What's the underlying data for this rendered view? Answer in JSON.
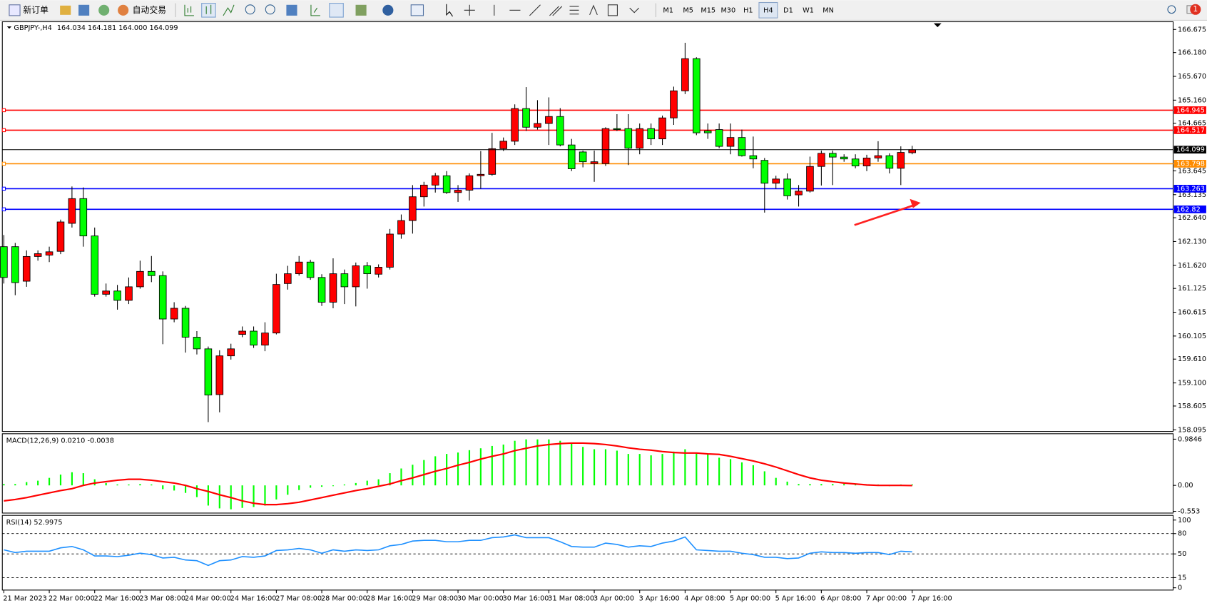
{
  "toolbar": {
    "buttons": [
      "新订单",
      "自动交易"
    ],
    "timeframes": [
      "M1",
      "M5",
      "M15",
      "M30",
      "H1",
      "H4",
      "D1",
      "W1",
      "MN"
    ],
    "active_timeframe": "H4",
    "badge": "1"
  },
  "chart_data": [
    {
      "type": "candlestick",
      "title": "GBPJPY-,H4",
      "ohlc_text": "164.034 164.181 164.000 164.099",
      "categories": [
        "21 Mar 2023",
        null,
        null,
        null,
        "22 Mar 00:00",
        null,
        null,
        null,
        "22 Mar 16:00",
        null,
        null,
        null,
        "23 Mar 08:00",
        null,
        null,
        null,
        "24 Mar 00:00",
        null,
        null,
        null,
        "24 Mar 16:00",
        null,
        null,
        null,
        "27 Mar 08:00",
        null,
        null,
        null,
        "28 Mar 00:00",
        null,
        null,
        null,
        "28 Mar 16:00",
        null,
        null,
        null,
        "29 Mar 08:00",
        null,
        null,
        null,
        "30 Mar 00:00",
        null,
        null,
        null,
        "30 Mar 16:00",
        null,
        null,
        null,
        "31 Mar 08:00",
        null,
        null,
        null,
        "3 Apr 00:00",
        null,
        null,
        null,
        "3 Apr 16:00",
        null,
        null,
        null,
        "4 Apr 08:00",
        null,
        null,
        null,
        "5 Apr 00:00",
        null,
        null,
        null,
        "5 Apr 16:00",
        null,
        null,
        null,
        "6 Apr 08:00",
        null,
        null,
        null,
        "7 Apr 00:00",
        null,
        null,
        null,
        "7 Apr 16:00"
      ],
      "open": [
        162.02,
        162.02,
        161.28,
        161.81,
        161.84,
        161.92,
        162.52,
        163.05,
        162.25,
        161.0,
        161.07,
        160.87,
        161.16,
        161.49,
        161.4,
        160.47,
        160.7,
        160.08,
        159.83,
        158.85,
        159.68,
        160.14,
        160.21,
        159.91,
        160.17,
        161.23,
        161.44,
        161.69,
        161.36,
        160.83,
        161.44,
        161.16,
        161.61,
        161.43,
        161.58,
        162.29,
        162.58,
        163.09,
        163.34,
        163.54,
        163.18,
        163.23,
        163.54,
        163.57,
        164.12,
        164.28,
        164.98,
        164.58,
        164.66,
        164.81,
        164.2,
        164.05,
        163.8,
        163.8,
        164.55,
        164.55,
        164.13,
        164.55,
        164.33,
        164.78,
        165.36,
        166.05,
        164.5,
        164.53,
        164.17,
        164.36,
        163.97,
        163.87,
        163.38,
        163.47,
        163.13,
        163.21,
        163.74,
        164.02,
        163.94,
        163.9,
        163.75,
        163.92,
        163.97,
        163.7,
        164.034
      ],
      "high": [
        162.27,
        162.1,
        161.94,
        161.94,
        162.02,
        162.6,
        163.31,
        163.29,
        162.43,
        161.23,
        161.2,
        161.36,
        161.72,
        161.82,
        161.49,
        160.83,
        160.75,
        160.21,
        159.88,
        159.8,
        159.94,
        160.31,
        160.31,
        160.4,
        161.44,
        161.61,
        161.82,
        161.74,
        161.43,
        161.77,
        161.53,
        161.68,
        161.69,
        161.64,
        162.4,
        162.71,
        163.34,
        163.41,
        163.6,
        163.64,
        163.34,
        163.59,
        164.07,
        164.46,
        164.36,
        165.07,
        165.44,
        165.16,
        165.22,
        164.99,
        164.33,
        164.08,
        164.08,
        164.58,
        164.86,
        164.86,
        164.66,
        164.66,
        164.83,
        165.45,
        166.39,
        166.08,
        164.66,
        164.66,
        164.66,
        164.53,
        164.38,
        163.92,
        163.54,
        163.59,
        163.34,
        163.95,
        164.08,
        164.08,
        164.0,
        164.0,
        163.99,
        164.28,
        164.02,
        164.17,
        164.181
      ],
      "low": [
        161.23,
        160.98,
        161.16,
        161.72,
        161.69,
        161.86,
        162.43,
        162.02,
        160.95,
        160.95,
        160.67,
        160.79,
        161.12,
        161.26,
        159.93,
        160.4,
        159.75,
        159.71,
        158.26,
        158.47,
        159.6,
        160.08,
        159.85,
        159.78,
        160.14,
        161.1,
        161.4,
        161.31,
        160.75,
        160.7,
        160.79,
        160.74,
        161.12,
        161.36,
        161.53,
        162.19,
        162.3,
        162.88,
        163.18,
        163.15,
        162.98,
        163.01,
        163.26,
        163.54,
        164.07,
        164.2,
        164.5,
        164.53,
        164.2,
        164.17,
        163.64,
        163.72,
        163.41,
        163.75,
        164.5,
        163.77,
        164.0,
        164.2,
        164.2,
        164.63,
        165.29,
        164.41,
        164.33,
        164.13,
        164.0,
        163.95,
        163.7,
        162.75,
        163.26,
        163.03,
        162.88,
        163.18,
        163.33,
        163.34,
        163.84,
        163.7,
        163.64,
        163.84,
        163.59,
        163.34,
        164.0
      ],
      "close": [
        161.36,
        161.25,
        161.81,
        161.87,
        161.91,
        162.55,
        163.05,
        162.25,
        161.0,
        161.07,
        160.87,
        161.16,
        161.49,
        161.4,
        160.47,
        160.7,
        160.08,
        159.83,
        158.84,
        159.68,
        159.83,
        160.21,
        159.91,
        160.17,
        161.21,
        161.44,
        161.69,
        161.36,
        160.83,
        161.44,
        161.16,
        161.61,
        161.44,
        161.58,
        162.29,
        162.58,
        163.09,
        163.34,
        163.54,
        163.18,
        163.23,
        163.54,
        163.57,
        164.12,
        164.28,
        164.98,
        164.58,
        164.66,
        164.81,
        164.2,
        163.69,
        163.84,
        163.84,
        164.55,
        164.53,
        164.13,
        164.55,
        164.33,
        164.78,
        165.36,
        166.05,
        164.46,
        164.46,
        164.17,
        164.36,
        163.97,
        163.9,
        163.38,
        163.47,
        163.11,
        163.21,
        163.74,
        164.02,
        163.94,
        163.9,
        163.75,
        163.92,
        163.97,
        163.7,
        164.04,
        164.099
      ],
      "up_color": "#ff0000",
      "down_color": "#00ff00",
      "current_color": "#000000",
      "ylim": [
        158.06,
        166.84
      ],
      "yticks": [
        166.675,
        {
          "value": 166.18,
          "label": "166.180"
        },
        {
          "value": 165.67,
          "label": "165.670"
        },
        {
          "value": 165.16,
          "label": "165.160"
        },
        164.665,
        163.645,
        163.135,
        {
          "value": 162.64,
          "label": "162.640"
        },
        {
          "value": 162.13,
          "label": "162.130"
        },
        {
          "value": 161.62,
          "label": "161.620"
        },
        161.125,
        160.615,
        160.105,
        {
          "value": 159.61,
          "label": "159.610"
        },
        {
          "value": 159.1,
          "label": "159.100"
        },
        158.605,
        158.095
      ],
      "hlines": [
        {
          "value": 164.945,
          "color": "#ff0000"
        },
        {
          "value": 164.517,
          "color": "#ff0000"
        },
        {
          "value": 163.798,
          "color": "#ff8c00"
        },
        {
          "value": 163.263,
          "color": "#0000ff"
        },
        {
          "value": 162.82,
          "color": "#0000ff"
        }
      ]
    },
    {
      "type": "macd",
      "title": "MACD(12,26,9) 0.0210 -0.0038",
      "color": "#00ff00",
      "signal_color": "#ff0000",
      "values": [
        0.03,
        0.03,
        0.07,
        0.1,
        0.16,
        0.23,
        0.28,
        0.26,
        0.13,
        0.05,
        0.02,
        0.02,
        0.03,
        0.02,
        -0.08,
        -0.11,
        -0.16,
        -0.25,
        -0.43,
        -0.49,
        -0.51,
        -0.48,
        -0.46,
        -0.43,
        -0.3,
        -0.2,
        -0.1,
        -0.05,
        -0.03,
        0,
        0.02,
        0.05,
        0.1,
        0.13,
        0.26,
        0.36,
        0.44,
        0.54,
        0.62,
        0.67,
        0.7,
        0.75,
        0.79,
        0.84,
        0.87,
        0.95,
        0.98,
        0.98,
        0.98,
        0.95,
        0.89,
        0.82,
        0.77,
        0.77,
        0.74,
        0.67,
        0.67,
        0.64,
        0.67,
        0.72,
        0.77,
        0.69,
        0.66,
        0.59,
        0.56,
        0.49,
        0.43,
        0.3,
        0.16,
        0.08,
        0.03,
        0.03,
        0.03,
        0.03,
        0.03,
        0.02,
        0.02,
        0.02,
        0,
        0.02,
        0.021
      ],
      "signal": [
        -0.33,
        -0.3,
        -0.26,
        -0.21,
        -0.16,
        -0.11,
        -0.07,
        0,
        0.05,
        0.08,
        0.11,
        0.13,
        0.13,
        0.11,
        0.08,
        0.05,
        0,
        -0.07,
        -0.13,
        -0.2,
        -0.26,
        -0.33,
        -0.38,
        -0.41,
        -0.41,
        -0.39,
        -0.36,
        -0.31,
        -0.26,
        -0.21,
        -0.16,
        -0.11,
        -0.07,
        -0.02,
        0.03,
        0.1,
        0.16,
        0.23,
        0.3,
        0.36,
        0.43,
        0.49,
        0.56,
        0.62,
        0.67,
        0.74,
        0.79,
        0.84,
        0.87,
        0.89,
        0.9,
        0.9,
        0.89,
        0.87,
        0.84,
        0.8,
        0.77,
        0.75,
        0.72,
        0.7,
        0.69,
        0.69,
        0.67,
        0.66,
        0.62,
        0.57,
        0.52,
        0.46,
        0.39,
        0.31,
        0.23,
        0.16,
        0.11,
        0.08,
        0.05,
        0.03,
        0.01,
        0,
        0,
        0,
        -0.0038
      ],
      "ylim": [
        -0.59,
        1.1
      ],
      "yticks": [
        0.9846,
        {
          "value": 0,
          "label": "0.00"
        },
        -0.553
      ]
    },
    {
      "type": "rsi",
      "title": "RSI(14) 52.9975",
      "color": "#1e90ff",
      "values": [
        56,
        52,
        54,
        54,
        54,
        59,
        61,
        56,
        47,
        47,
        46,
        48,
        51,
        49,
        44,
        45,
        41,
        40,
        33,
        40,
        41,
        46,
        45,
        47,
        55,
        56,
        58,
        56,
        51,
        56,
        54,
        56,
        55,
        56,
        62,
        64,
        69,
        70,
        70,
        68,
        68,
        70,
        70,
        74,
        75,
        78,
        74,
        74,
        74,
        68,
        61,
        60,
        60,
        66,
        64,
        60,
        62,
        61,
        66,
        69,
        75,
        56,
        55,
        54,
        54,
        51,
        49,
        45,
        45,
        43,
        44,
        51,
        53,
        52,
        52,
        51,
        52,
        52,
        49,
        54,
        52.9975
      ],
      "ylim": [
        -3.4,
        106.9
      ],
      "yticks": [
        100,
        80,
        50,
        15,
        0
      ],
      "levels": [
        80,
        50,
        15
      ]
    }
  ]
}
